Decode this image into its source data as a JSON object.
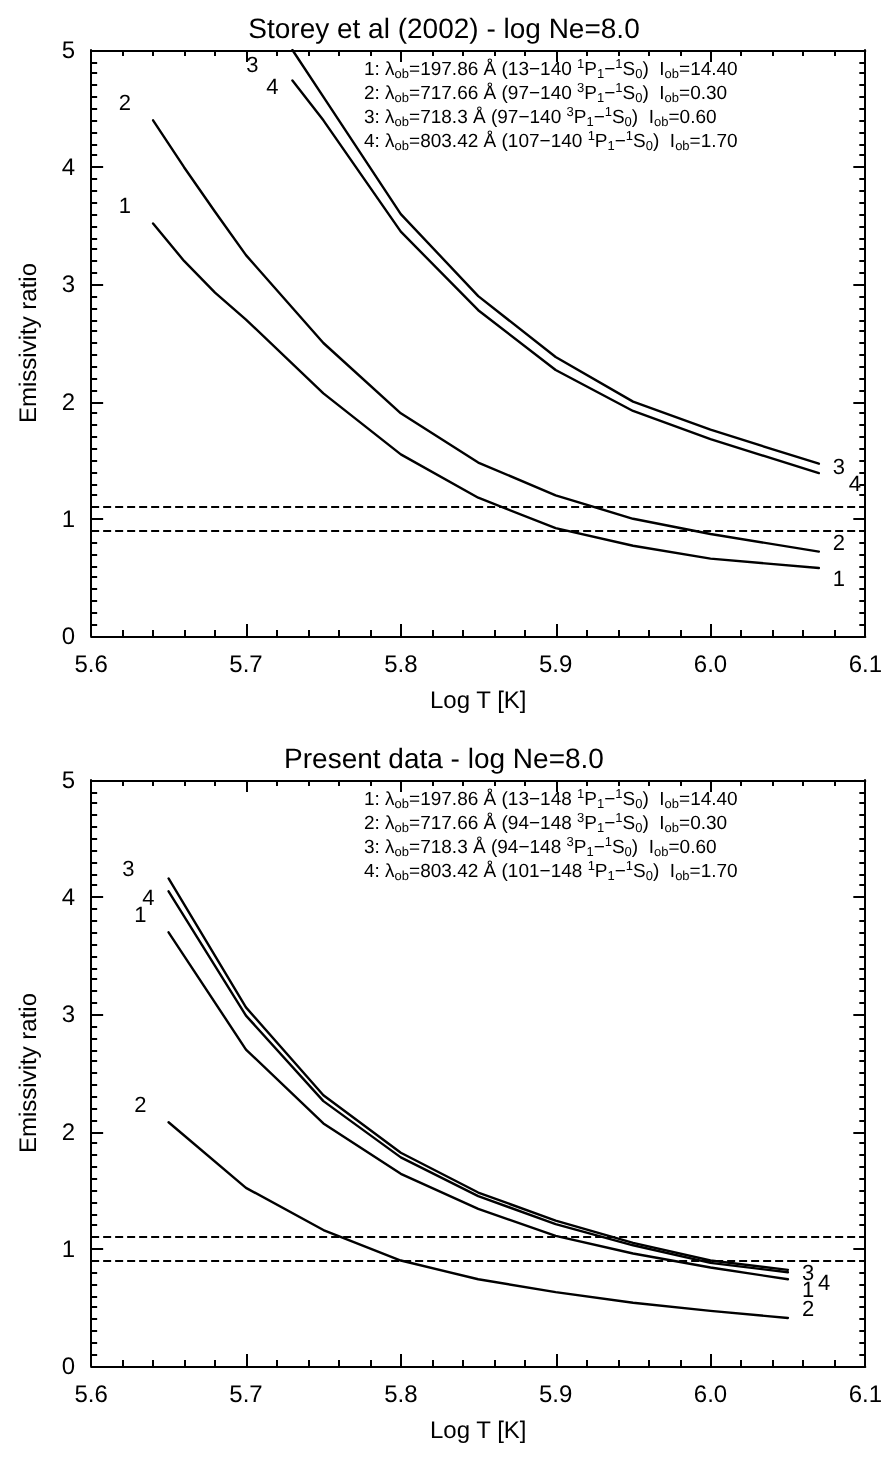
{
  "chart_data": [
    {
      "type": "line",
      "title": "Storey et al (2002) - log Ne=8.0",
      "xlabel": "Log T [K]",
      "ylabel": "Emissivity ratio",
      "xlim": [
        5.6,
        6.1
      ],
      "ylim": [
        0,
        5
      ],
      "xticks": [
        5.6,
        5.7,
        5.8,
        5.9,
        {
          "value": 6,
          "label": "6.0"
        },
        6.1
      ],
      "yticks": [
        0,
        1,
        2,
        3,
        4,
        5
      ],
      "marker": "none",
      "line_style": "solid",
      "legend": "right",
      "annotations": [
        "1: λ$_{ob}$=197.86 Å (13−140 $^{1}$P$_{1}$−$^{1}$S$_{0}$)  I$_{ob}$=14.40",
        "2: λ$_{ob}$=717.66 Å (97−140 $^{3}$P$_{1}$−$^{1}$S$_{0}$)  I$_{ob}$=0.30",
        "3: λ$_{ob}$=718.3 Å (97−140 $^{3}$P$_{1}$−$^{1}$S$_{0}$)  I$_{ob}$=0.60",
        "4: λ$_{ob}$=803.42 Å (107−140 $^{1}$P$_{1}$−$^{1}$S$_{0}$)  I$_{ob}$=1.70"
      ],
      "ref_lines": [
        {
          "axis": "y",
          "value": 1.1,
          "line_style": "dashed"
        },
        {
          "axis": "y",
          "value": 0.9,
          "line_style": "dashed"
        }
      ],
      "series": [
        {
          "name": "1",
          "color": "#000000",
          "x": [
            5.64,
            5.66,
            5.68,
            5.7,
            5.75,
            5.8,
            5.85,
            5.9,
            5.95,
            6.0,
            6.07
          ],
          "values": [
            3.52,
            3.2,
            2.93,
            2.7,
            2.07,
            1.55,
            1.18,
            0.92,
            0.77,
            0.66,
            0.58
          ]
        },
        {
          "name": "2",
          "color": "#000000",
          "x": [
            5.64,
            5.66,
            5.68,
            5.7,
            5.75,
            5.8,
            5.85,
            5.9,
            5.95,
            6.0,
            6.07
          ],
          "values": [
            4.4,
            4.0,
            3.62,
            3.25,
            2.5,
            1.9,
            1.48,
            1.2,
            1.0,
            0.87,
            0.72
          ]
        },
        {
          "name": "3",
          "color": "#000000",
          "x": [
            5.73,
            5.75,
            5.8,
            5.85,
            5.9,
            5.95,
            6.0,
            6.07
          ],
          "values": [
            5.0,
            4.6,
            3.6,
            2.9,
            2.38,
            2.0,
            1.76,
            1.47
          ]
        },
        {
          "name": "4",
          "color": "#000000",
          "x": [
            5.73,
            5.75,
            5.8,
            5.85,
            5.9,
            5.95,
            6.0,
            6.07
          ],
          "values": [
            4.74,
            4.4,
            3.45,
            2.78,
            2.27,
            1.92,
            1.68,
            1.39
          ]
        }
      ]
    },
    {
      "type": "line",
      "title": "Present data - log Ne=8.0",
      "xlabel": "Log T [K]",
      "ylabel": "Emissivity ratio",
      "xlim": [
        5.6,
        6.1
      ],
      "ylim": [
        0,
        5
      ],
      "xticks": [
        5.6,
        5.7,
        5.8,
        5.9,
        {
          "value": 6,
          "label": "6.0"
        },
        6.1
      ],
      "yticks": [
        0,
        1,
        2,
        3,
        4,
        5
      ],
      "marker": "none",
      "line_style": "solid",
      "legend": "right",
      "annotations": [
        "1: λ$_{ob}$=197.86 Å (13−148 $^{1}$P$_{1}$−$^{1}$S$_{0}$)  I$_{ob}$=14.40",
        "2: λ$_{ob}$=717.66 Å (94−148 $^{3}$P$_{1}$−$^{1}$S$_{0}$)  I$_{ob}$=0.30",
        "3: λ$_{ob}$=718.3 Å (94−148 $^{3}$P$_{1}$−$^{1}$S$_{0}$)  I$_{ob}$=0.60",
        "4: λ$_{ob}$=803.42 Å (101−148 $^{1}$P$_{1}$−$^{1}$S$_{0}$)  I$_{ob}$=1.70"
      ],
      "ref_lines": [
        {
          "axis": "y",
          "value": 1.1,
          "line_style": "dashed"
        },
        {
          "axis": "y",
          "value": 0.9,
          "line_style": "dashed"
        }
      ],
      "series": [
        {
          "name": "1",
          "color": "#000000",
          "x": [
            5.65,
            5.7,
            5.75,
            5.8,
            5.85,
            5.9,
            5.95,
            6.0,
            6.05
          ],
          "values": [
            3.7,
            2.7,
            2.07,
            1.64,
            1.34,
            1.11,
            0.96,
            0.84,
            0.74
          ]
        },
        {
          "name": "2",
          "color": "#000000",
          "x": [
            5.65,
            5.7,
            5.75,
            5.8,
            5.85,
            5.9,
            5.95,
            6.0,
            6.05
          ],
          "values": [
            2.08,
            1.52,
            1.16,
            0.9,
            0.74,
            0.63,
            0.54,
            0.47,
            0.41
          ]
        },
        {
          "name": "3",
          "color": "#000000",
          "x": [
            5.65,
            5.7,
            5.75,
            5.8,
            5.85,
            5.9,
            5.95,
            6.0,
            6.05
          ],
          "values": [
            4.16,
            3.06,
            2.31,
            1.82,
            1.48,
            1.24,
            1.05,
            0.9,
            0.82
          ]
        },
        {
          "name": "4",
          "color": "#000000",
          "x": [
            5.65,
            5.7,
            5.75,
            5.8,
            5.85,
            5.9,
            5.95,
            6.0,
            6.05
          ],
          "values": [
            4.05,
            2.99,
            2.26,
            1.78,
            1.45,
            1.21,
            1.03,
            0.88,
            0.8
          ]
        }
      ]
    }
  ]
}
